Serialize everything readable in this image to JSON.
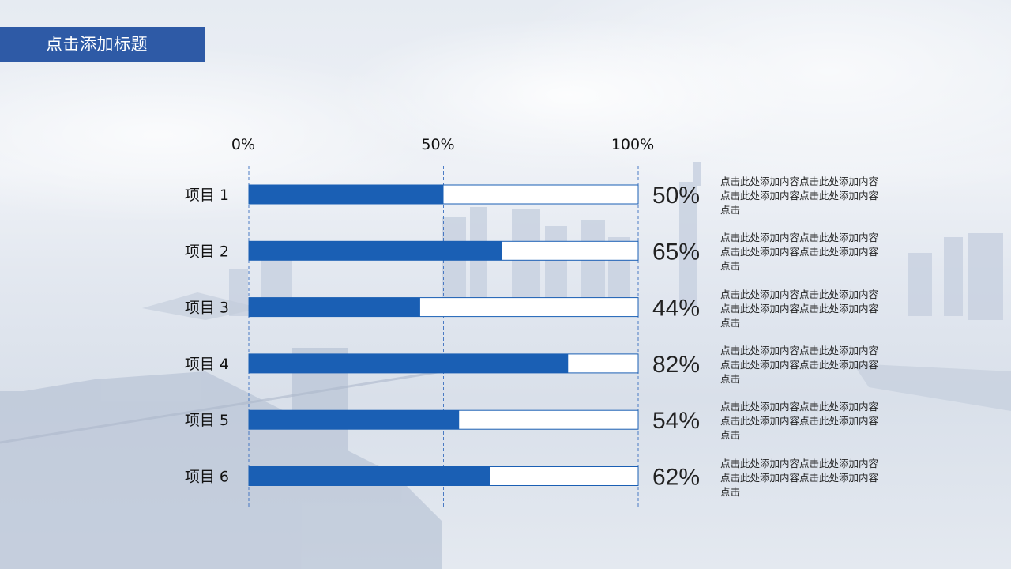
{
  "slide": {
    "title": "点击添加标题"
  },
  "colors": {
    "bar": "#1a5fb4",
    "track_border": "#1a5fb4",
    "title_bar": "#2e5aa6",
    "grid": "#3a6fc0"
  },
  "chart_data": {
    "type": "bar",
    "orientation": "horizontal",
    "x_ticks": [
      "0%",
      "50%",
      "100%"
    ],
    "xlim": [
      0,
      100
    ],
    "grid": true,
    "categories": [
      "项目 1",
      "项目 2",
      "项目 3",
      "项目 4",
      "项目 5",
      "项目 6"
    ],
    "values": [
      50,
      65,
      44,
      82,
      54,
      62
    ],
    "value_labels": [
      "50%",
      "65%",
      "44%",
      "82%",
      "54%",
      "62%"
    ]
  },
  "descriptions": [
    "点击此处添加内容点击此处添加内容点击此处添加内容点击此处添加内容点击",
    "点击此处添加内容点击此处添加内容点击此处添加内容点击此处添加内容点击",
    "点击此处添加内容点击此处添加内容点击此处添加内容点击此处添加内容点击",
    "点击此处添加内容点击此处添加内容点击此处添加内容点击此处添加内容点击",
    "点击此处添加内容点击此处添加内容点击此处添加内容点击此处添加内容点击",
    "点击此处添加内容点击此处添加内容点击此处添加内容点击此处添加内容点击"
  ]
}
